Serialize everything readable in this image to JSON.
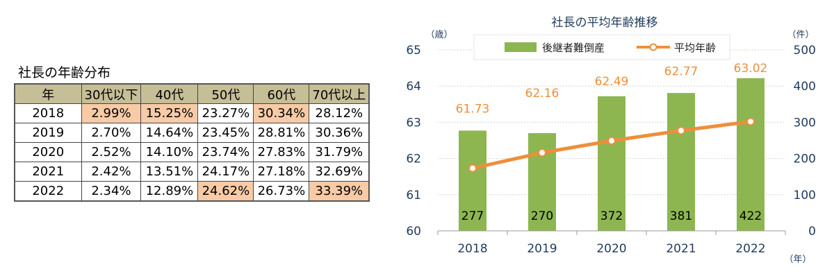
{
  "table": {
    "title": "社長の年齢分布",
    "headers": [
      "年",
      "30代以下",
      "40代",
      "50代",
      "60代",
      "70代以上"
    ],
    "rows": [
      {
        "cells": [
          "2018",
          "2.99%",
          "15.25%",
          "23.27%",
          "30.34%",
          "28.12%"
        ],
        "highlight": [
          false,
          true,
          true,
          false,
          true,
          false
        ]
      },
      {
        "cells": [
          "2019",
          "2.70%",
          "14.64%",
          "23.45%",
          "28.81%",
          "30.36%"
        ],
        "highlight": [
          false,
          false,
          false,
          false,
          false,
          false
        ]
      },
      {
        "cells": [
          "2020",
          "2.52%",
          "14.10%",
          "23.74%",
          "27.83%",
          "31.79%"
        ],
        "highlight": [
          false,
          false,
          false,
          false,
          false,
          false
        ]
      },
      {
        "cells": [
          "2021",
          "2.42%",
          "13.51%",
          "24.17%",
          "27.18%",
          "32.69%"
        ],
        "highlight": [
          false,
          false,
          false,
          false,
          false,
          false
        ]
      },
      {
        "cells": [
          "2022",
          "2.34%",
          "12.89%",
          "24.62%",
          "26.73%",
          "33.39%"
        ],
        "highlight": [
          false,
          false,
          false,
          true,
          false,
          true
        ]
      }
    ],
    "colors": {
      "header_bg": "#c6be97",
      "highlight_bg": "#f8cba6"
    }
  },
  "chart_data": {
    "type": "bar",
    "title": "社長の平均年齢推移",
    "categories": [
      "2018",
      "2019",
      "2020",
      "2021",
      "2022"
    ],
    "xlabel": "（年）",
    "y_left_label": "（歳）",
    "y_right_label": "（件）",
    "y_left_lim": [
      60,
      65
    ],
    "y_left_ticks": [
      "60",
      "61",
      "62",
      "63",
      "64",
      "65"
    ],
    "y_right_lim": [
      0,
      500
    ],
    "y_right_ticks": [
      "0",
      "100",
      "200",
      "300",
      "400",
      "500"
    ],
    "series": [
      {
        "name": "後継者難倒産",
        "kind": "bar",
        "axis": "right",
        "color": "#8db651",
        "values": [
          277,
          270,
          372,
          381,
          422
        ],
        "labels": [
          "277",
          "270",
          "372",
          "381",
          "422"
        ]
      },
      {
        "name": "平均年齢",
        "kind": "line",
        "axis": "left",
        "color": "#ed8f3b",
        "values": [
          61.73,
          62.16,
          62.49,
          62.77,
          63.02
        ],
        "labels": [
          "61.73",
          "62.16",
          "62.49",
          "62.77",
          "63.02"
        ]
      }
    ],
    "grid": true,
    "legend": "top"
  }
}
